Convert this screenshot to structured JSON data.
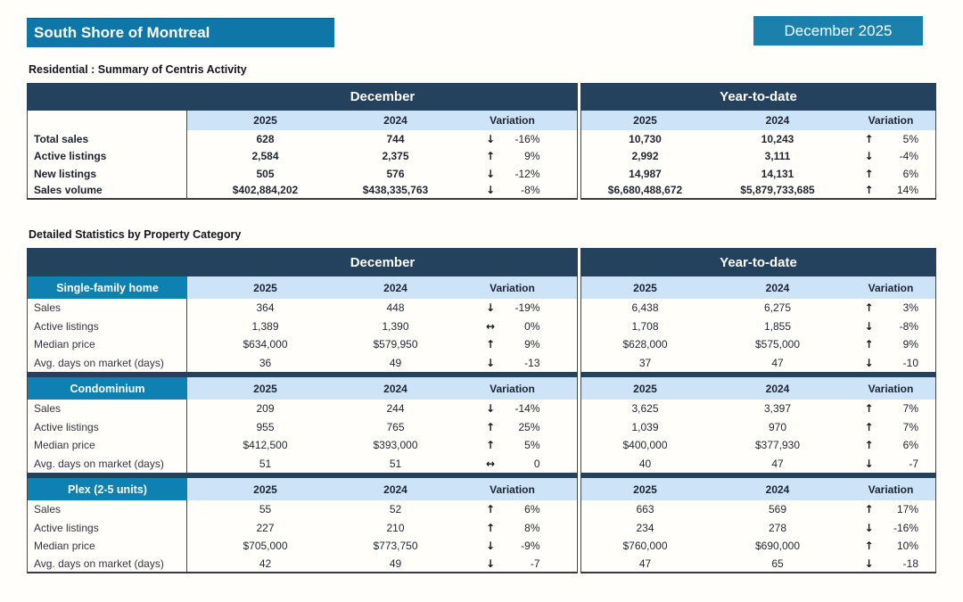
{
  "header": {
    "region_title": "South Shore of Montreal",
    "period_badge": "December 2025"
  },
  "colors": {
    "navy": "#24415e",
    "light_blue": "#cde3f7",
    "section_teal": "#0e80b2",
    "title_teal": "#0f76a8",
    "badge_teal": "#1c80ad"
  },
  "summary_table": {
    "heading": "Residential : Summary of Centris Activity",
    "groups": [
      "December",
      "Year-to-date"
    ],
    "columns": [
      "2025",
      "2024",
      "Variation"
    ],
    "rows": [
      {
        "label": "Total sales",
        "dec_2025": "628",
        "dec_2024": "744",
        "dec_var_arrow": "↓",
        "dec_var": "-16%",
        "ytd_2025": "10,730",
        "ytd_2024": "10,243",
        "ytd_var_arrow": "↑",
        "ytd_var": "5%"
      },
      {
        "label": "Active listings",
        "dec_2025": "2,584",
        "dec_2024": "2,375",
        "dec_var_arrow": "↑",
        "dec_var": "9%",
        "ytd_2025": "2,992",
        "ytd_2024": "3,111",
        "ytd_var_arrow": "↓",
        "ytd_var": "-4%"
      },
      {
        "label": "New listings",
        "dec_2025": "505",
        "dec_2024": "576",
        "dec_var_arrow": "↓",
        "dec_var": "-12%",
        "ytd_2025": "14,987",
        "ytd_2024": "14,131",
        "ytd_var_arrow": "↑",
        "ytd_var": "6%"
      },
      {
        "label": "Sales volume",
        "dec_2025": "$402,884,202",
        "dec_2024": "$438,335,763",
        "dec_var_arrow": "↓",
        "dec_var": "-8%",
        "ytd_2025": "$6,680,488,672",
        "ytd_2024": "$5,879,733,685",
        "ytd_var_arrow": "↑",
        "ytd_var": "14%"
      }
    ]
  },
  "detailed_table": {
    "heading": "Detailed Statistics by Property Category",
    "groups": [
      "December",
      "Year-to-date"
    ],
    "columns": [
      "2025",
      "2024",
      "Variation"
    ],
    "sections": [
      {
        "category": "Single-family home",
        "rows": [
          {
            "label": "Sales",
            "dec_2025": "364",
            "dec_2024": "448",
            "dec_var_arrow": "↓",
            "dec_var": "-19%",
            "ytd_2025": "6,438",
            "ytd_2024": "6,275",
            "ytd_var_arrow": "↑",
            "ytd_var": "3%"
          },
          {
            "label": "Active listings",
            "dec_2025": "1,389",
            "dec_2024": "1,390",
            "dec_var_arrow": "↔",
            "dec_var": "0%",
            "ytd_2025": "1,708",
            "ytd_2024": "1,855",
            "ytd_var_arrow": "↓",
            "ytd_var": "-8%"
          },
          {
            "label": "Median price",
            "dec_2025": "$634,000",
            "dec_2024": "$579,950",
            "dec_var_arrow": "↑",
            "dec_var": "9%",
            "ytd_2025": "$628,000",
            "ytd_2024": "$575,000",
            "ytd_var_arrow": "↑",
            "ytd_var": "9%"
          },
          {
            "label": "Avg. days on market (days)",
            "dec_2025": "36",
            "dec_2024": "49",
            "dec_var_arrow": "↓",
            "dec_var": "-13",
            "ytd_2025": "37",
            "ytd_2024": "47",
            "ytd_var_arrow": "↓",
            "ytd_var": "-10"
          }
        ]
      },
      {
        "category": "Condominium",
        "rows": [
          {
            "label": "Sales",
            "dec_2025": "209",
            "dec_2024": "244",
            "dec_var_arrow": "↓",
            "dec_var": "-14%",
            "ytd_2025": "3,625",
            "ytd_2024": "3,397",
            "ytd_var_arrow": "↑",
            "ytd_var": "7%"
          },
          {
            "label": "Active listings",
            "dec_2025": "955",
            "dec_2024": "765",
            "dec_var_arrow": "↑",
            "dec_var": "25%",
            "ytd_2025": "1,039",
            "ytd_2024": "970",
            "ytd_var_arrow": "↑",
            "ytd_var": "7%"
          },
          {
            "label": "Median price",
            "dec_2025": "$412,500",
            "dec_2024": "$393,000",
            "dec_var_arrow": "↑",
            "dec_var": "5%",
            "ytd_2025": "$400,000",
            "ytd_2024": "$377,930",
            "ytd_var_arrow": "↑",
            "ytd_var": "6%"
          },
          {
            "label": "Avg. days on market (days)",
            "dec_2025": "51",
            "dec_2024": "51",
            "dec_var_arrow": "↔",
            "dec_var": "0",
            "ytd_2025": "40",
            "ytd_2024": "47",
            "ytd_var_arrow": "↓",
            "ytd_var": "-7"
          }
        ]
      },
      {
        "category": "Plex (2-5 units)",
        "rows": [
          {
            "label": "Sales",
            "dec_2025": "55",
            "dec_2024": "52",
            "dec_var_arrow": "↑",
            "dec_var": "6%",
            "ytd_2025": "663",
            "ytd_2024": "569",
            "ytd_var_arrow": "↑",
            "ytd_var": "17%"
          },
          {
            "label": "Active listings",
            "dec_2025": "227",
            "dec_2024": "210",
            "dec_var_arrow": "↑",
            "dec_var": "8%",
            "ytd_2025": "234",
            "ytd_2024": "278",
            "ytd_var_arrow": "↓",
            "ytd_var": "-16%"
          },
          {
            "label": "Median price",
            "dec_2025": "$705,000",
            "dec_2024": "$773,750",
            "dec_var_arrow": "↓",
            "dec_var": "-9%",
            "ytd_2025": "$760,000",
            "ytd_2024": "$690,000",
            "ytd_var_arrow": "↑",
            "ytd_var": "10%"
          },
          {
            "label": "Avg. days on market (days)",
            "dec_2025": "42",
            "dec_2024": "49",
            "dec_var_arrow": "↓",
            "dec_var": "-7",
            "ytd_2025": "47",
            "ytd_2024": "65",
            "ytd_var_arrow": "↓",
            "ytd_var": "-18"
          }
        ]
      }
    ]
  }
}
